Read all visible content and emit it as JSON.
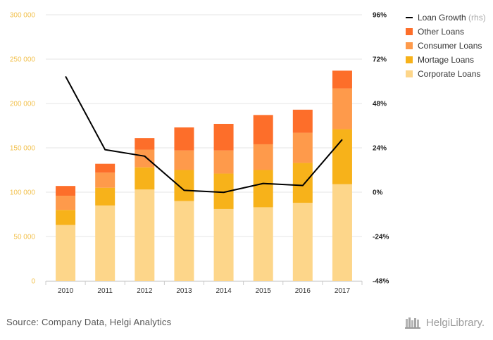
{
  "source_text": "Source: Company Data, Helgi Analytics",
  "logo_text": "HelgiLibrary.",
  "chart_data": {
    "type": "bar",
    "stacked": true,
    "categories": [
      "2010",
      "2011",
      "2012",
      "2013",
      "2014",
      "2015",
      "2016",
      "2017"
    ],
    "series": [
      {
        "name": "Corporate Loans",
        "color": "#fdd68a",
        "values": [
          63000,
          85000,
          103000,
          90000,
          81000,
          83000,
          88000,
          109000
        ]
      },
      {
        "name": "Mortage Loans",
        "color": "#f7b21a",
        "values": [
          17000,
          20000,
          25000,
          35000,
          40000,
          42000,
          45000,
          62000
        ]
      },
      {
        "name": "Consumer Loans",
        "color": "#fe9a4b",
        "values": [
          16000,
          17000,
          20000,
          22000,
          26000,
          29000,
          34000,
          46000
        ]
      },
      {
        "name": "Other Loans",
        "color": "#fd6e2a",
        "values": [
          11000,
          10000,
          13000,
          26000,
          30000,
          33000,
          26000,
          20000
        ]
      }
    ],
    "line": {
      "name": "Loan Growth",
      "suffix": "(rhs)",
      "color": "#000000",
      "values": [
        62.7,
        23.0,
        19.5,
        1.0,
        -0.1,
        4.7,
        3.6,
        28.5
      ]
    },
    "ylim": [
      0,
      300000
    ],
    "y_ticks": [
      "0",
      "50 000",
      "100 000",
      "150 000",
      "200 000",
      "250 000",
      "300 000"
    ],
    "y2lim": [
      -48,
      96
    ],
    "y2_ticks": [
      "-48%",
      "-24%",
      "0%",
      "24%",
      "48%",
      "72%",
      "96%"
    ],
    "legend_position": "top-right",
    "grid": true
  }
}
